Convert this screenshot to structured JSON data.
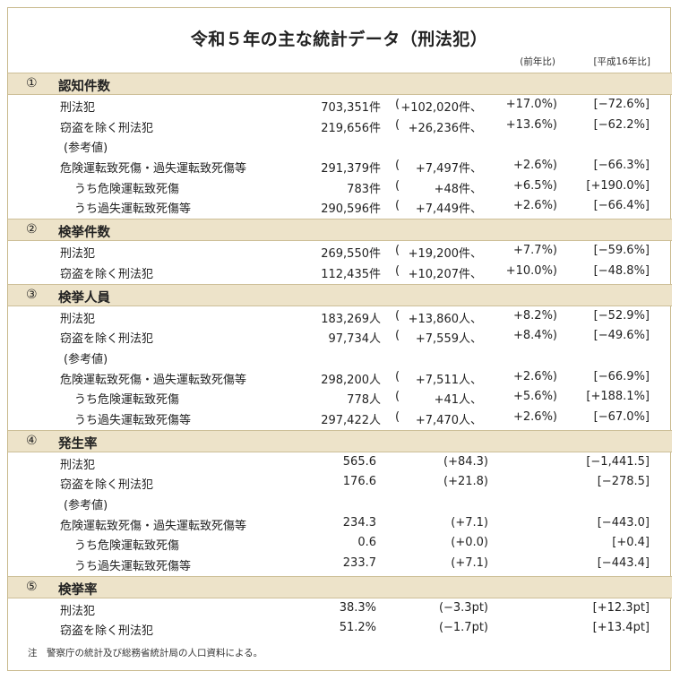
{
  "title": "令和５年の主な統計データ（刑法犯）",
  "col_prev": "(前年比)",
  "col_h16": "[平成16年比]",
  "sections": [
    {
      "num": "①",
      "title": "認知件数",
      "rows": [
        {
          "type": "main",
          "label": "刑法犯",
          "value": "703,351件",
          "open": "(",
          "chg": "+102,020件、",
          "pct": "+17.0%)",
          "since": "[−72.6%]"
        },
        {
          "type": "main",
          "label": "窃盗を除く刑法犯",
          "value": "219,656件",
          "open": "(",
          "chg": "+26,236件、",
          "pct": "+13.6%)",
          "since": "[−62.2%]"
        },
        {
          "type": "ref",
          "label": "(参考値)"
        },
        {
          "type": "main",
          "label": "危険運転致死傷・過失運転致死傷等",
          "value": "291,379件",
          "open": "(",
          "chg": "+7,497件、",
          "pct": "+2.6%)",
          "since": "[−66.3%]"
        },
        {
          "type": "sub",
          "label": "うち危険運転致死傷",
          "value": "783件",
          "open": "(",
          "chg": "+48件、",
          "pct": "+6.5%)",
          "since": "[+190.0%]"
        },
        {
          "type": "sub",
          "label": "うち過失運転致死傷等",
          "value": "290,596件",
          "open": "(",
          "chg": "+7,449件、",
          "pct": "+2.6%)",
          "since": "[−66.4%]"
        }
      ]
    },
    {
      "num": "②",
      "title": "検挙件数",
      "rows": [
        {
          "type": "main",
          "label": "刑法犯",
          "value": "269,550件",
          "open": "(",
          "chg": "+19,200件、",
          "pct": "+7.7%)",
          "since": "[−59.6%]"
        },
        {
          "type": "main",
          "label": "窃盗を除く刑法犯",
          "value": "112,435件",
          "open": "(",
          "chg": "+10,207件、",
          "pct": "+10.0%)",
          "since": "[−48.8%]"
        }
      ]
    },
    {
      "num": "③",
      "title": "検挙人員",
      "rows": [
        {
          "type": "main",
          "label": "刑法犯",
          "value": "183,269人",
          "open": "(",
          "chg": "+13,860人、",
          "pct": "+8.2%)",
          "since": "[−52.9%]"
        },
        {
          "type": "main",
          "label": "窃盗を除く刑法犯",
          "value": "97,734人",
          "open": "(",
          "chg": "+7,559人、",
          "pct": "+8.4%)",
          "since": "[−49.6%]"
        },
        {
          "type": "ref",
          "label": "(参考値)"
        },
        {
          "type": "main",
          "label": "危険運転致死傷・過失運転致死傷等",
          "value": "298,200人",
          "open": "(",
          "chg": "+7,511人、",
          "pct": "+2.6%)",
          "since": "[−66.9%]"
        },
        {
          "type": "sub",
          "label": "うち危険運転致死傷",
          "value": "778人",
          "open": "(",
          "chg": "+41人、",
          "pct": "+5.6%)",
          "since": "[+188.1%]"
        },
        {
          "type": "sub",
          "label": "うち過失運転致死傷等",
          "value": "297,422人",
          "open": "(",
          "chg": "+7,470人、",
          "pct": "+2.6%)",
          "since": "[−67.0%]"
        }
      ]
    },
    {
      "num": "④",
      "title": "発生率",
      "rows": [
        {
          "type": "rate",
          "label": "刑法犯",
          "value": "565.6",
          "chg": "(+84.3)",
          "since": "[−1,441.5]"
        },
        {
          "type": "rate",
          "label": "窃盗を除く刑法犯",
          "value": "176.6",
          "chg": "(+21.8)",
          "since": "[−278.5]"
        },
        {
          "type": "ref",
          "label": "(参考値)"
        },
        {
          "type": "rate",
          "label": "危険運転致死傷・過失運転致死傷等",
          "value": "234.3",
          "chg": "(+7.1)",
          "since": "[−443.0]"
        },
        {
          "type": "ratesub",
          "label": "うち危険運転致死傷",
          "value": "0.6",
          "chg": "(+0.0)",
          "since": "[+0.4]"
        },
        {
          "type": "ratesub",
          "label": "うち過失運転致死傷等",
          "value": "233.7",
          "chg": "(+7.1)",
          "since": "[−443.4]"
        }
      ]
    },
    {
      "num": "⑤",
      "title": "検挙率",
      "rows": [
        {
          "type": "rate",
          "label": "刑法犯",
          "value": "38.3%",
          "chg": "(−3.3pt)",
          "since": "[+12.3pt]"
        },
        {
          "type": "rate",
          "label": "窃盗を除く刑法犯",
          "value": "51.2%",
          "chg": "(−1.7pt)",
          "since": "[+13.4pt]"
        }
      ]
    }
  ],
  "note": "注　警察庁の統計及び総務省統計局の人口資料による。"
}
